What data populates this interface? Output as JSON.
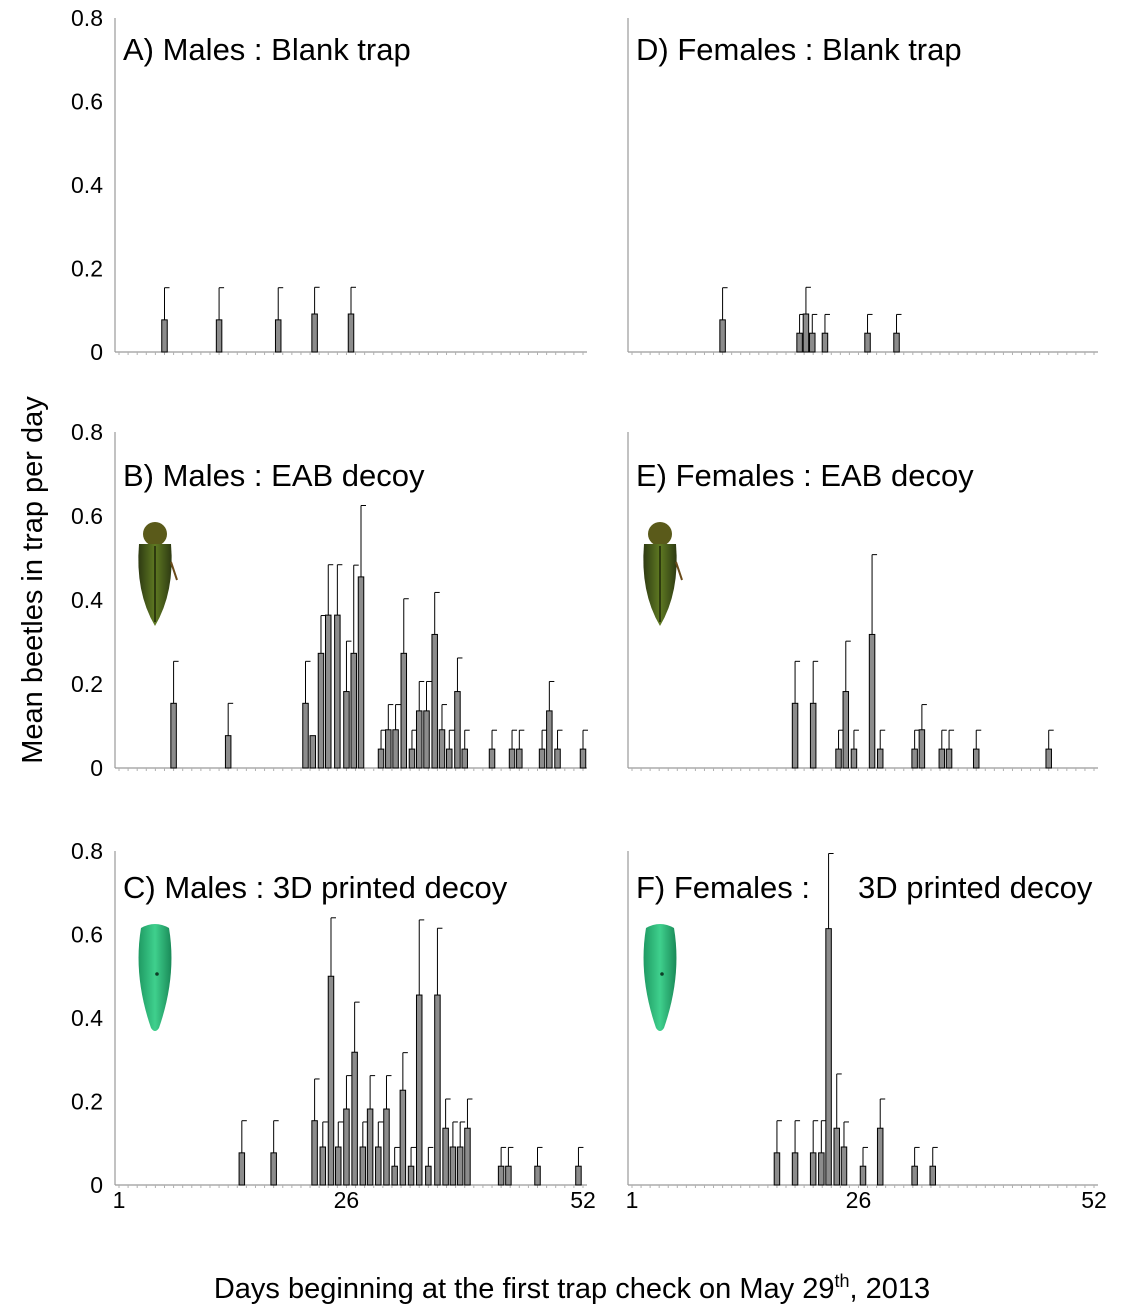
{
  "figure": {
    "xlabel_main": "Days beginning at the first trap check on May 29",
    "xlabel_sup": "th",
    "xlabel_end": ", 2013",
    "ylabel": "Mean beetles in trap per day"
  },
  "icons": {
    "eab": "emerald-ash-borer-photo",
    "printed": "3d-printed-decoy-photo"
  },
  "colors": {
    "bar": "#8c8c8c",
    "axis": "#9a9a9a"
  },
  "chart_data": [
    {
      "type": "bar",
      "title": "A) Males : Blank trap",
      "ylim": [
        0,
        0.8
      ],
      "yticks": [
        "0",
        "0.2",
        "0.4",
        "0.6",
        "0.8"
      ],
      "xlim": [
        1,
        52
      ],
      "xticks": [],
      "icon": "",
      "bars": [
        {
          "x": 6,
          "y": 0.077,
          "err": 0.077
        },
        {
          "x": 12,
          "y": 0.077,
          "err": 0.077
        },
        {
          "x": 18.5,
          "y": 0.077,
          "err": 0.077
        },
        {
          "x": 22.5,
          "y": 0.091,
          "err": 0.064
        },
        {
          "x": 26.5,
          "y": 0.091,
          "err": 0.064
        }
      ]
    },
    {
      "type": "bar",
      "title": "B) Males : EAB decoy",
      "ylim": [
        0,
        0.8
      ],
      "yticks": [
        "0",
        "0.2",
        "0.4",
        "0.6",
        "0.8"
      ],
      "xlim": [
        1,
        52
      ],
      "xticks": [],
      "icon": "eab",
      "bars": [
        {
          "x": 7,
          "y": 0.154,
          "err": 0.1
        },
        {
          "x": 13,
          "y": 0.077,
          "err": 0.077
        },
        {
          "x": 21.5,
          "y": 0.154,
          "err": 0.1
        },
        {
          "x": 22.3,
          "y": 0.077,
          "err": 0
        },
        {
          "x": 23.2,
          "y": 0.273,
          "err": 0.09
        },
        {
          "x": 24,
          "y": 0.364,
          "err": 0.12
        },
        {
          "x": 25,
          "y": 0.364,
          "err": 0.12
        },
        {
          "x": 26,
          "y": 0.182,
          "err": 0.12
        },
        {
          "x": 26.8,
          "y": 0.273,
          "err": 0.21
        },
        {
          "x": 27.6,
          "y": 0.455,
          "err": 0.17
        },
        {
          "x": 29.8,
          "y": 0.045,
          "err": 0.045
        },
        {
          "x": 30.6,
          "y": 0.091,
          "err": 0.06
        },
        {
          "x": 31.4,
          "y": 0.091,
          "err": 0.06
        },
        {
          "x": 32.3,
          "y": 0.273,
          "err": 0.13
        },
        {
          "x": 33.2,
          "y": 0.045,
          "err": 0.045
        },
        {
          "x": 34,
          "y": 0.136,
          "err": 0.07
        },
        {
          "x": 34.8,
          "y": 0.136,
          "err": 0.07
        },
        {
          "x": 35.7,
          "y": 0.318,
          "err": 0.1
        },
        {
          "x": 36.5,
          "y": 0.091,
          "err": 0.06
        },
        {
          "x": 37.3,
          "y": 0.045,
          "err": 0.045
        },
        {
          "x": 38.2,
          "y": 0.182,
          "err": 0.08
        },
        {
          "x": 39,
          "y": 0.045,
          "err": 0.045
        },
        {
          "x": 42,
          "y": 0.045,
          "err": 0.045
        },
        {
          "x": 44.2,
          "y": 0.045,
          "err": 0.045
        },
        {
          "x": 45,
          "y": 0.045,
          "err": 0.045
        },
        {
          "x": 47.5,
          "y": 0.045,
          "err": 0.045
        },
        {
          "x": 48.3,
          "y": 0.136,
          "err": 0.07
        },
        {
          "x": 49.2,
          "y": 0.045,
          "err": 0.045
        },
        {
          "x": 52,
          "y": 0.045,
          "err": 0.045
        }
      ]
    },
    {
      "type": "bar",
      "title": "C) Males : 3D printed decoy",
      "ylim": [
        0,
        0.8
      ],
      "yticks": [
        "0",
        "0.2",
        "0.4",
        "0.6",
        "0.8"
      ],
      "xlim": [
        1,
        52
      ],
      "xticks": [
        "1",
        "26",
        "52"
      ],
      "icon": "printed",
      "bars": [
        {
          "x": 14.5,
          "y": 0.077,
          "err": 0.077
        },
        {
          "x": 18,
          "y": 0.077,
          "err": 0.077
        },
        {
          "x": 22.5,
          "y": 0.154,
          "err": 0.1
        },
        {
          "x": 23.4,
          "y": 0.091,
          "err": 0.06
        },
        {
          "x": 24.3,
          "y": 0.5,
          "err": 0.14
        },
        {
          "x": 25.1,
          "y": 0.091,
          "err": 0.06
        },
        {
          "x": 26,
          "y": 0.182,
          "err": 0.08
        },
        {
          "x": 26.9,
          "y": 0.318,
          "err": 0.12
        },
        {
          "x": 27.8,
          "y": 0.091,
          "err": 0.06
        },
        {
          "x": 28.6,
          "y": 0.182,
          "err": 0.08
        },
        {
          "x": 29.5,
          "y": 0.091,
          "err": 0.06
        },
        {
          "x": 30.4,
          "y": 0.182,
          "err": 0.08
        },
        {
          "x": 31.3,
          "y": 0.045,
          "err": 0.045
        },
        {
          "x": 32.2,
          "y": 0.227,
          "err": 0.09
        },
        {
          "x": 33.1,
          "y": 0.045,
          "err": 0.045
        },
        {
          "x": 34,
          "y": 0.455,
          "err": 0.18
        },
        {
          "x": 35,
          "y": 0.045,
          "err": 0.045
        },
        {
          "x": 36,
          "y": 0.455,
          "err": 0.16
        },
        {
          "x": 36.9,
          "y": 0.136,
          "err": 0.07
        },
        {
          "x": 37.7,
          "y": 0.091,
          "err": 0.06
        },
        {
          "x": 38.5,
          "y": 0.091,
          "err": 0.06
        },
        {
          "x": 39.3,
          "y": 0.136,
          "err": 0.07
        },
        {
          "x": 43,
          "y": 0.045,
          "err": 0.045
        },
        {
          "x": 43.8,
          "y": 0.045,
          "err": 0.045
        },
        {
          "x": 47,
          "y": 0.045,
          "err": 0.045
        },
        {
          "x": 51.5,
          "y": 0.045,
          "err": 0.045
        }
      ]
    },
    {
      "type": "bar",
      "title": "D) Females : Blank trap",
      "ylim": [
        0,
        0.8
      ],
      "yticks": [],
      "xlim": [
        1,
        52
      ],
      "xticks": [],
      "icon": "",
      "bars": [
        {
          "x": 11,
          "y": 0.077,
          "err": 0.077
        },
        {
          "x": 19.5,
          "y": 0.045,
          "err": 0.045
        },
        {
          "x": 20.2,
          "y": 0.091,
          "err": 0.064
        },
        {
          "x": 20.9,
          "y": 0.045,
          "err": 0.045
        },
        {
          "x": 22.3,
          "y": 0.045,
          "err": 0.045
        },
        {
          "x": 27,
          "y": 0.045,
          "err": 0.045
        },
        {
          "x": 30.2,
          "y": 0.045,
          "err": 0.045
        }
      ]
    },
    {
      "type": "bar",
      "title": "E) Females : EAB decoy",
      "ylim": [
        0,
        0.8
      ],
      "yticks": [],
      "xlim": [
        1,
        52
      ],
      "xticks": [],
      "icon": "eab",
      "bars": [
        {
          "x": 19,
          "y": 0.154,
          "err": 0.1
        },
        {
          "x": 21,
          "y": 0.154,
          "err": 0.1
        },
        {
          "x": 23.8,
          "y": 0.045,
          "err": 0.045
        },
        {
          "x": 24.6,
          "y": 0.182,
          "err": 0.12
        },
        {
          "x": 25.5,
          "y": 0.045,
          "err": 0.045
        },
        {
          "x": 27.5,
          "y": 0.318,
          "err": 0.19
        },
        {
          "x": 28.4,
          "y": 0.045,
          "err": 0.045
        },
        {
          "x": 32.2,
          "y": 0.045,
          "err": 0.045
        },
        {
          "x": 33,
          "y": 0.091,
          "err": 0.06
        },
        {
          "x": 35.2,
          "y": 0.045,
          "err": 0.045
        },
        {
          "x": 36,
          "y": 0.045,
          "err": 0.045
        },
        {
          "x": 39,
          "y": 0.045,
          "err": 0.045
        },
        {
          "x": 47,
          "y": 0.045,
          "err": 0.045
        }
      ]
    },
    {
      "type": "bar",
      "title": "F) Females :",
      "title2": "3D printed decoy",
      "ylim": [
        0,
        0.8
      ],
      "yticks": [],
      "xlim": [
        1,
        52
      ],
      "xticks": [
        "1",
        "26",
        "52"
      ],
      "icon": "printed",
      "bars": [
        {
          "x": 17,
          "y": 0.077,
          "err": 0.077
        },
        {
          "x": 19,
          "y": 0.077,
          "err": 0.077
        },
        {
          "x": 21,
          "y": 0.077,
          "err": 0.077
        },
        {
          "x": 21.9,
          "y": 0.077,
          "err": 0.077
        },
        {
          "x": 22.7,
          "y": 0.614,
          "err": 0.18
        },
        {
          "x": 23.6,
          "y": 0.136,
          "err": 0.13
        },
        {
          "x": 24.4,
          "y": 0.091,
          "err": 0.06
        },
        {
          "x": 26.5,
          "y": 0.045,
          "err": 0.045
        },
        {
          "x": 28.4,
          "y": 0.136,
          "err": 0.07
        },
        {
          "x": 32.2,
          "y": 0.045,
          "err": 0.045
        },
        {
          "x": 34.2,
          "y": 0.045,
          "err": 0.045
        }
      ]
    }
  ]
}
